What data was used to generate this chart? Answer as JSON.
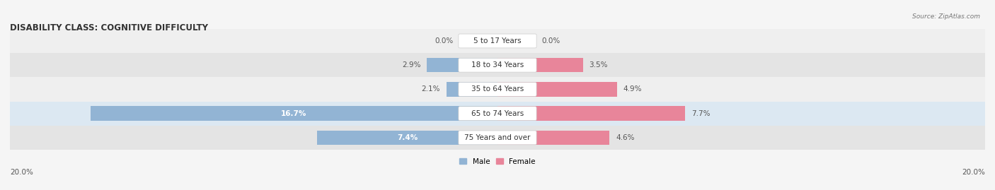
{
  "title": "DISABILITY CLASS: COGNITIVE DIFFICULTY",
  "source": "Source: ZipAtlas.com",
  "categories": [
    "5 to 17 Years",
    "18 to 34 Years",
    "35 to 64 Years",
    "65 to 74 Years",
    "75 Years and over"
  ],
  "male_values": [
    0.0,
    2.9,
    2.1,
    16.7,
    7.4
  ],
  "female_values": [
    0.0,
    3.5,
    4.9,
    7.7,
    4.6
  ],
  "male_color": "#92b4d4",
  "female_color": "#e8859a",
  "row_bg_colors": [
    "#efefef",
    "#e4e4e4",
    "#efefef",
    "#dce8f2",
    "#e4e4e4"
  ],
  "max_val": 20.0,
  "label_fontsize": 7.5,
  "title_fontsize": 8.5,
  "axis_label": "20.0%",
  "legend_male": "Male",
  "legend_female": "Female",
  "center_box_color": "#ffffff",
  "center_box_edge": "#cccccc",
  "background_color": "#f5f5f5",
  "bar_label_inside_color": "#ffffff",
  "bar_label_outside_color": "#555555"
}
